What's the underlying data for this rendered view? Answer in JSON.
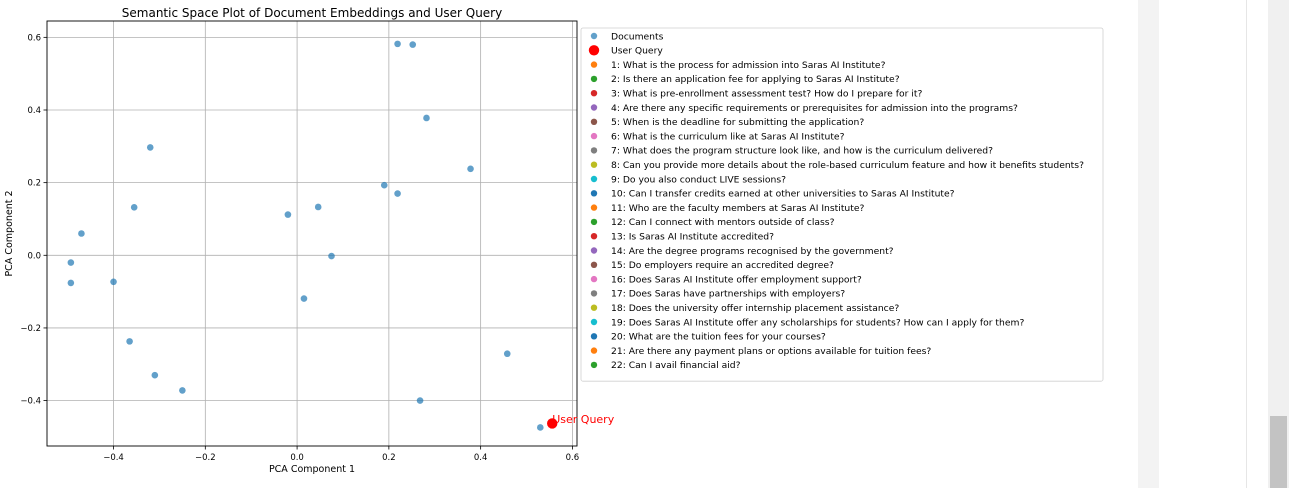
{
  "chart_data": {
    "type": "scatter",
    "title": "Semantic Space Plot of Document Embeddings and User Query",
    "xlabel": "PCA Component 1",
    "ylabel": "PCA Component 2",
    "xlim": [
      -0.545,
      0.61
    ],
    "ylim": [
      -0.525,
      0.645
    ],
    "xticks": [
      -0.4,
      -0.2,
      0.0,
      0.2,
      0.4,
      0.6
    ],
    "yticks": [
      -0.4,
      -0.2,
      0.0,
      0.2,
      0.4,
      0.6
    ],
    "grid": true,
    "legend_position": "right, outside plot",
    "series": [
      {
        "name": "Documents",
        "color": "#1f77b4",
        "points": [
          [
            0.219,
            0.582
          ],
          [
            0.252,
            0.58
          ],
          [
            0.282,
            0.378
          ],
          [
            0.378,
            0.238
          ],
          [
            -0.32,
            0.297
          ],
          [
            -0.355,
            0.132
          ],
          [
            0.19,
            0.193
          ],
          [
            0.219,
            0.17
          ],
          [
            -0.47,
            0.06
          ],
          [
            -0.02,
            0.112
          ],
          [
            0.046,
            0.133
          ],
          [
            0.075,
            -0.002
          ],
          [
            -0.493,
            -0.02
          ],
          [
            -0.493,
            -0.076
          ],
          [
            -0.4,
            -0.073
          ],
          [
            0.015,
            -0.119
          ],
          [
            -0.365,
            -0.237
          ],
          [
            -0.31,
            -0.33
          ],
          [
            -0.25,
            -0.372
          ],
          [
            0.268,
            -0.4
          ],
          [
            0.458,
            -0.271
          ],
          [
            0.53,
            -0.474
          ]
        ]
      },
      {
        "name": "User Query",
        "color": "#ff0000",
        "points": [
          [
            0.556,
            -0.463
          ]
        ]
      }
    ],
    "annotation": {
      "text": "User Query",
      "color": "#ff0000"
    },
    "legend_entries": [
      {
        "label": "Documents",
        "color": "#1f77b4",
        "large": false
      },
      {
        "label": "User Query",
        "color": "#ff0000",
        "large": true
      },
      {
        "label": "1: What is the process for admission into Saras AI Institute?",
        "color": "#ff7f0e"
      },
      {
        "label": "2: Is there an application fee for applying to Saras AI Institute?",
        "color": "#2ca02c"
      },
      {
        "label": "3: What is pre-enrollment assessment test? How do I prepare for it?",
        "color": "#d62728"
      },
      {
        "label": "4: Are there any specific requirements or prerequisites for admission into the programs?",
        "color": "#9467bd"
      },
      {
        "label": "5: When is the deadline for submitting the application?",
        "color": "#8c564b"
      },
      {
        "label": "6: What is the curriculum like at Saras AI Institute?",
        "color": "#e377c2"
      },
      {
        "label": "7: What does the program structure look like, and how is the curriculum delivered?",
        "color": "#7f7f7f"
      },
      {
        "label": "8: Can you provide more details about the role-based curriculum feature and how it benefits students?",
        "color": "#bcbd22"
      },
      {
        "label": "9: Do you also conduct LIVE sessions?",
        "color": "#17becf"
      },
      {
        "label": "10: Can I transfer credits earned at other universities to Saras AI Institute?",
        "color": "#1f77b4"
      },
      {
        "label": "11: Who are the faculty members at Saras AI Institute?",
        "color": "#ff7f0e"
      },
      {
        "label": "12: Can I connect with mentors outside of class?",
        "color": "#2ca02c"
      },
      {
        "label": "13: Is Saras AI Institute accredited?",
        "color": "#d62728"
      },
      {
        "label": "14: Are the degree programs recognised by the government?",
        "color": "#9467bd"
      },
      {
        "label": "15: Do employers require an accredited degree?",
        "color": "#8c564b"
      },
      {
        "label": "16: Does Saras AI Institute offer employment support?",
        "color": "#e377c2"
      },
      {
        "label": "17: Does Saras have partnerships with employers?",
        "color": "#7f7f7f"
      },
      {
        "label": "18:  Does the university offer internship placement assistance?",
        "color": "#bcbd22"
      },
      {
        "label": "19: Does Saras AI Institute offer any scholarships for students? How can I apply for them?",
        "color": "#17becf"
      },
      {
        "label": "20:  What are the tuition fees for your courses?",
        "color": "#1f77b4"
      },
      {
        "label": "21: Are there any payment plans or options available for tuition fees?",
        "color": "#ff7f0e"
      },
      {
        "label": "22: Can I avail financial aid?",
        "color": "#2ca02c"
      }
    ]
  }
}
